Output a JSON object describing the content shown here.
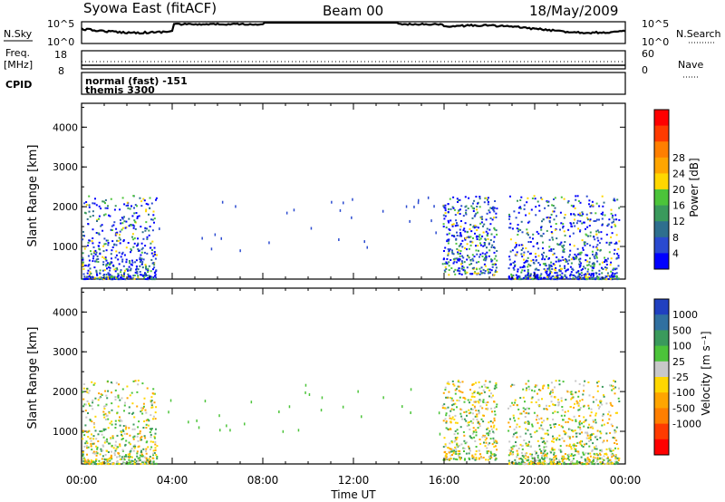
{
  "header": {
    "station": "Syowa East (fitACF)",
    "beam": "Beam 00",
    "date": "18/May/2009"
  },
  "top_panels": {
    "nsky": {
      "label": "N.Sky",
      "ticks": [
        "10^5",
        "10^0"
      ]
    },
    "nsearch": {
      "label": "N.Search",
      "ticks": [
        "10^5",
        "10^0"
      ]
    },
    "freq": {
      "label_line1": "Freq.",
      "label_line2": "[MHz]",
      "ticks": [
        "18",
        "8"
      ]
    },
    "nave": {
      "label": "Nave",
      "ticks": [
        "60",
        "0"
      ]
    },
    "cpid": {
      "label": "CPID",
      "line1": "normal (fast) -151",
      "line2": "themis 3300"
    }
  },
  "colors": {
    "power": [
      "#0000ff",
      "#2a4ad0",
      "#2e6f8e",
      "#3a9a5c",
      "#4cc43a",
      "#ffd700",
      "#ffa500",
      "#ff7f00",
      "#ff3b00",
      "#ff0000"
    ],
    "velocity": [
      "#2040c0",
      "#3070a0",
      "#3a9a5c",
      "#4cc43a",
      "#c8c8c8",
      "#ffd700",
      "#ffa500",
      "#ff7f00",
      "#ff3b00",
      "#ff0000"
    ]
  },
  "chart_data": [
    {
      "type": "heatmap",
      "title": "Power",
      "xlabel": "Time UT",
      "ylabel": "Slant Range [km]",
      "x_ticks": [
        "00:00",
        "04:00",
        "08:00",
        "12:00",
        "16:00",
        "20:00",
        "00:00"
      ],
      "y_ticks": [
        "1000",
        "2000",
        "3000",
        "4000"
      ],
      "ylim": [
        180,
        4600
      ],
      "colorbar": {
        "label": "Power [dB]",
        "ticks": [
          "4",
          "8",
          "12",
          "16",
          "20",
          "24",
          "28"
        ]
      },
      "scatter_regions_hours": [
        {
          "t": [
            0.0,
            3.3
          ],
          "r": [
            200,
            2300
          ],
          "note": "dense near-range echoes"
        },
        {
          "t": [
            15.9,
            18.3
          ],
          "r": [
            300,
            2300
          ]
        },
        {
          "t": [
            18.8,
            23.7
          ],
          "r": [
            200,
            2300
          ],
          "note": "dense near-range echoes"
        }
      ]
    },
    {
      "type": "heatmap",
      "title": "Velocity",
      "xlabel": "Time UT",
      "ylabel": "Slant Range [km]",
      "x_ticks": [
        "00:00",
        "04:00",
        "08:00",
        "12:00",
        "16:00",
        "20:00",
        "00:00"
      ],
      "y_ticks": [
        "1000",
        "2000",
        "3000",
        "4000"
      ],
      "ylim": [
        180,
        4600
      ],
      "colorbar": {
        "label": "Velocity [m s⁻¹]",
        "ticks": [
          "1000",
          "500",
          "100",
          "25",
          "-25",
          "-100",
          "-500",
          "-1000"
        ]
      }
    }
  ]
}
